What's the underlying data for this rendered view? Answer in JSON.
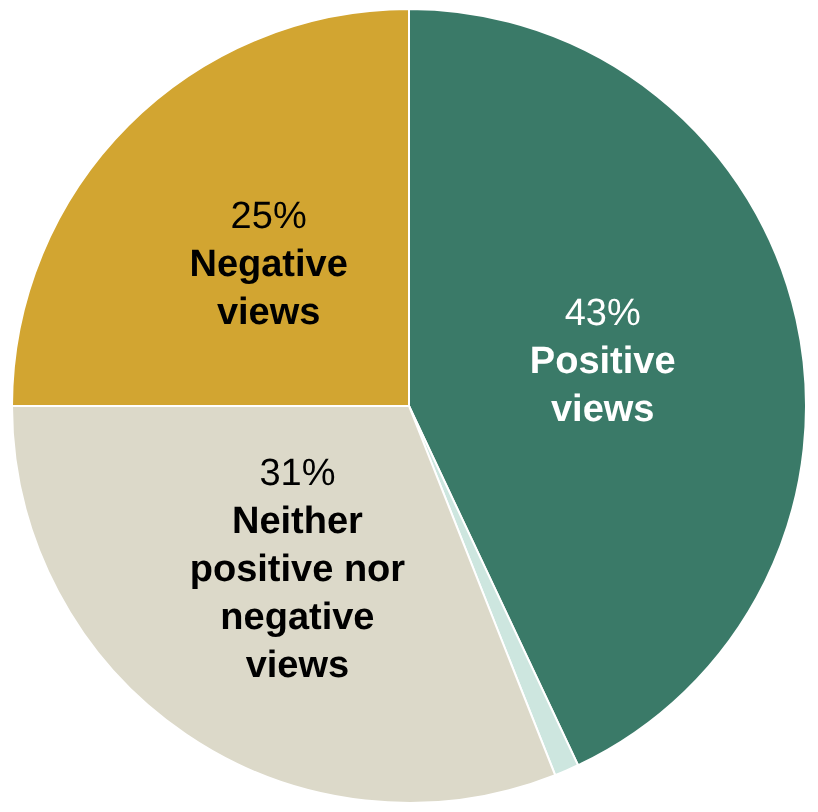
{
  "chart_data": {
    "type": "pie",
    "categories": [
      "Positive views",
      null,
      "Neither positive nor negative views",
      "Negative views"
    ],
    "values": [
      43,
      1,
      31,
      25
    ],
    "colors": [
      "#3a7a68",
      "#cde6df",
      "#dcd9c9",
      "#d2a531"
    ],
    "value_labels": [
      "43%",
      null,
      "31%",
      "25%"
    ],
    "legend": false
  }
}
